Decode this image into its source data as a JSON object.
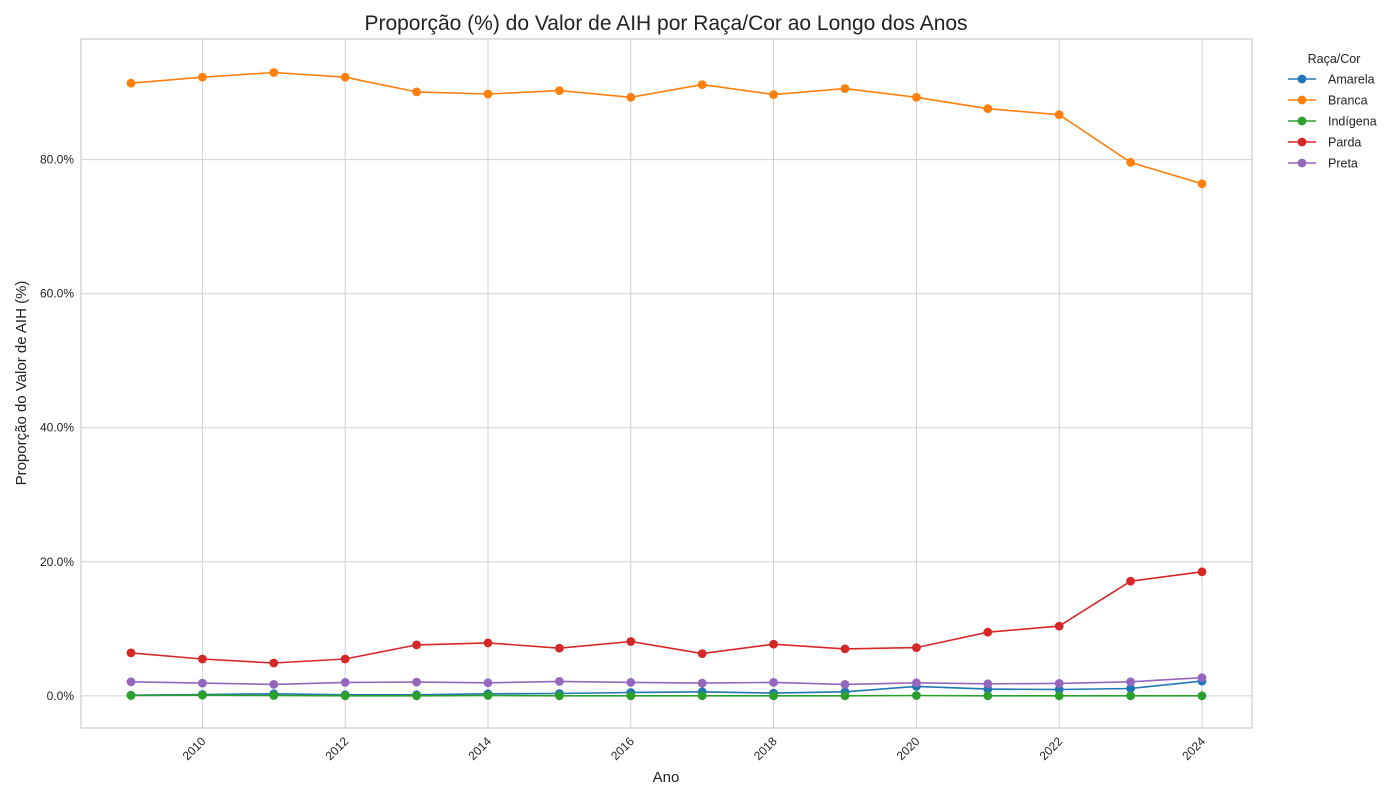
{
  "chart_data": {
    "type": "line",
    "title": "Proporção (%) do Valor de AIH por Raça/Cor ao Longo dos Anos",
    "xlabel": "Ano",
    "ylabel": "Proporção do Valor de AIH (%)",
    "x": [
      2009,
      2010,
      2011,
      2012,
      2013,
      2014,
      2015,
      2016,
      2017,
      2018,
      2019,
      2020,
      2021,
      2022,
      2023,
      2024
    ],
    "xlim": [
      2008.3,
      2024.7
    ],
    "ylim": [
      -4.8,
      98.0
    ],
    "x_ticks": [
      2010,
      2012,
      2014,
      2016,
      2018,
      2020,
      2022,
      2024
    ],
    "x_tick_labels": [
      "2010",
      "2012",
      "2014",
      "2016",
      "2018",
      "2020",
      "2022",
      "2024"
    ],
    "y_ticks": [
      0,
      20,
      40,
      60,
      80
    ],
    "y_tick_labels": [
      "0.0%",
      "20.0%",
      "40.0%",
      "60.0%",
      "80.0%"
    ],
    "grid": true,
    "legend": {
      "title": "Raça/Cor",
      "placement": "outside-top-right"
    },
    "series": [
      {
        "name": "Amarela",
        "color": "#1f77b4",
        "values": [
          0.1,
          0.2,
          0.3,
          0.15,
          0.15,
          0.3,
          0.35,
          0.5,
          0.6,
          0.4,
          0.6,
          1.4,
          1.0,
          0.95,
          1.1,
          2.2
        ]
      },
      {
        "name": "Branca",
        "color": "#ff7f0e",
        "values": [
          91.4,
          92.3,
          93.0,
          92.3,
          90.1,
          89.8,
          90.3,
          89.3,
          91.2,
          89.7,
          90.6,
          89.3,
          87.6,
          86.7,
          79.6,
          76.4
        ]
      },
      {
        "name": "Indígena",
        "color": "#2ca02c",
        "values": [
          0.05,
          0.1,
          0.05,
          0.0,
          0.0,
          0.05,
          0.0,
          0.0,
          0.0,
          0.0,
          0.0,
          0.05,
          0.0,
          0.0,
          0.0,
          0.0
        ]
      },
      {
        "name": "Parda",
        "color": "#d62728",
        "values": [
          6.4,
          5.5,
          4.9,
          5.5,
          7.6,
          7.9,
          7.1,
          8.1,
          6.3,
          7.7,
          7.0,
          7.2,
          9.5,
          10.4,
          17.1,
          18.5
        ]
      },
      {
        "name": "Preta",
        "color": "#9467bd",
        "values": [
          2.1,
          1.9,
          1.7,
          2.0,
          2.05,
          1.95,
          2.15,
          2.0,
          1.9,
          2.0,
          1.7,
          1.95,
          1.8,
          1.85,
          2.1,
          2.7
        ]
      }
    ]
  }
}
